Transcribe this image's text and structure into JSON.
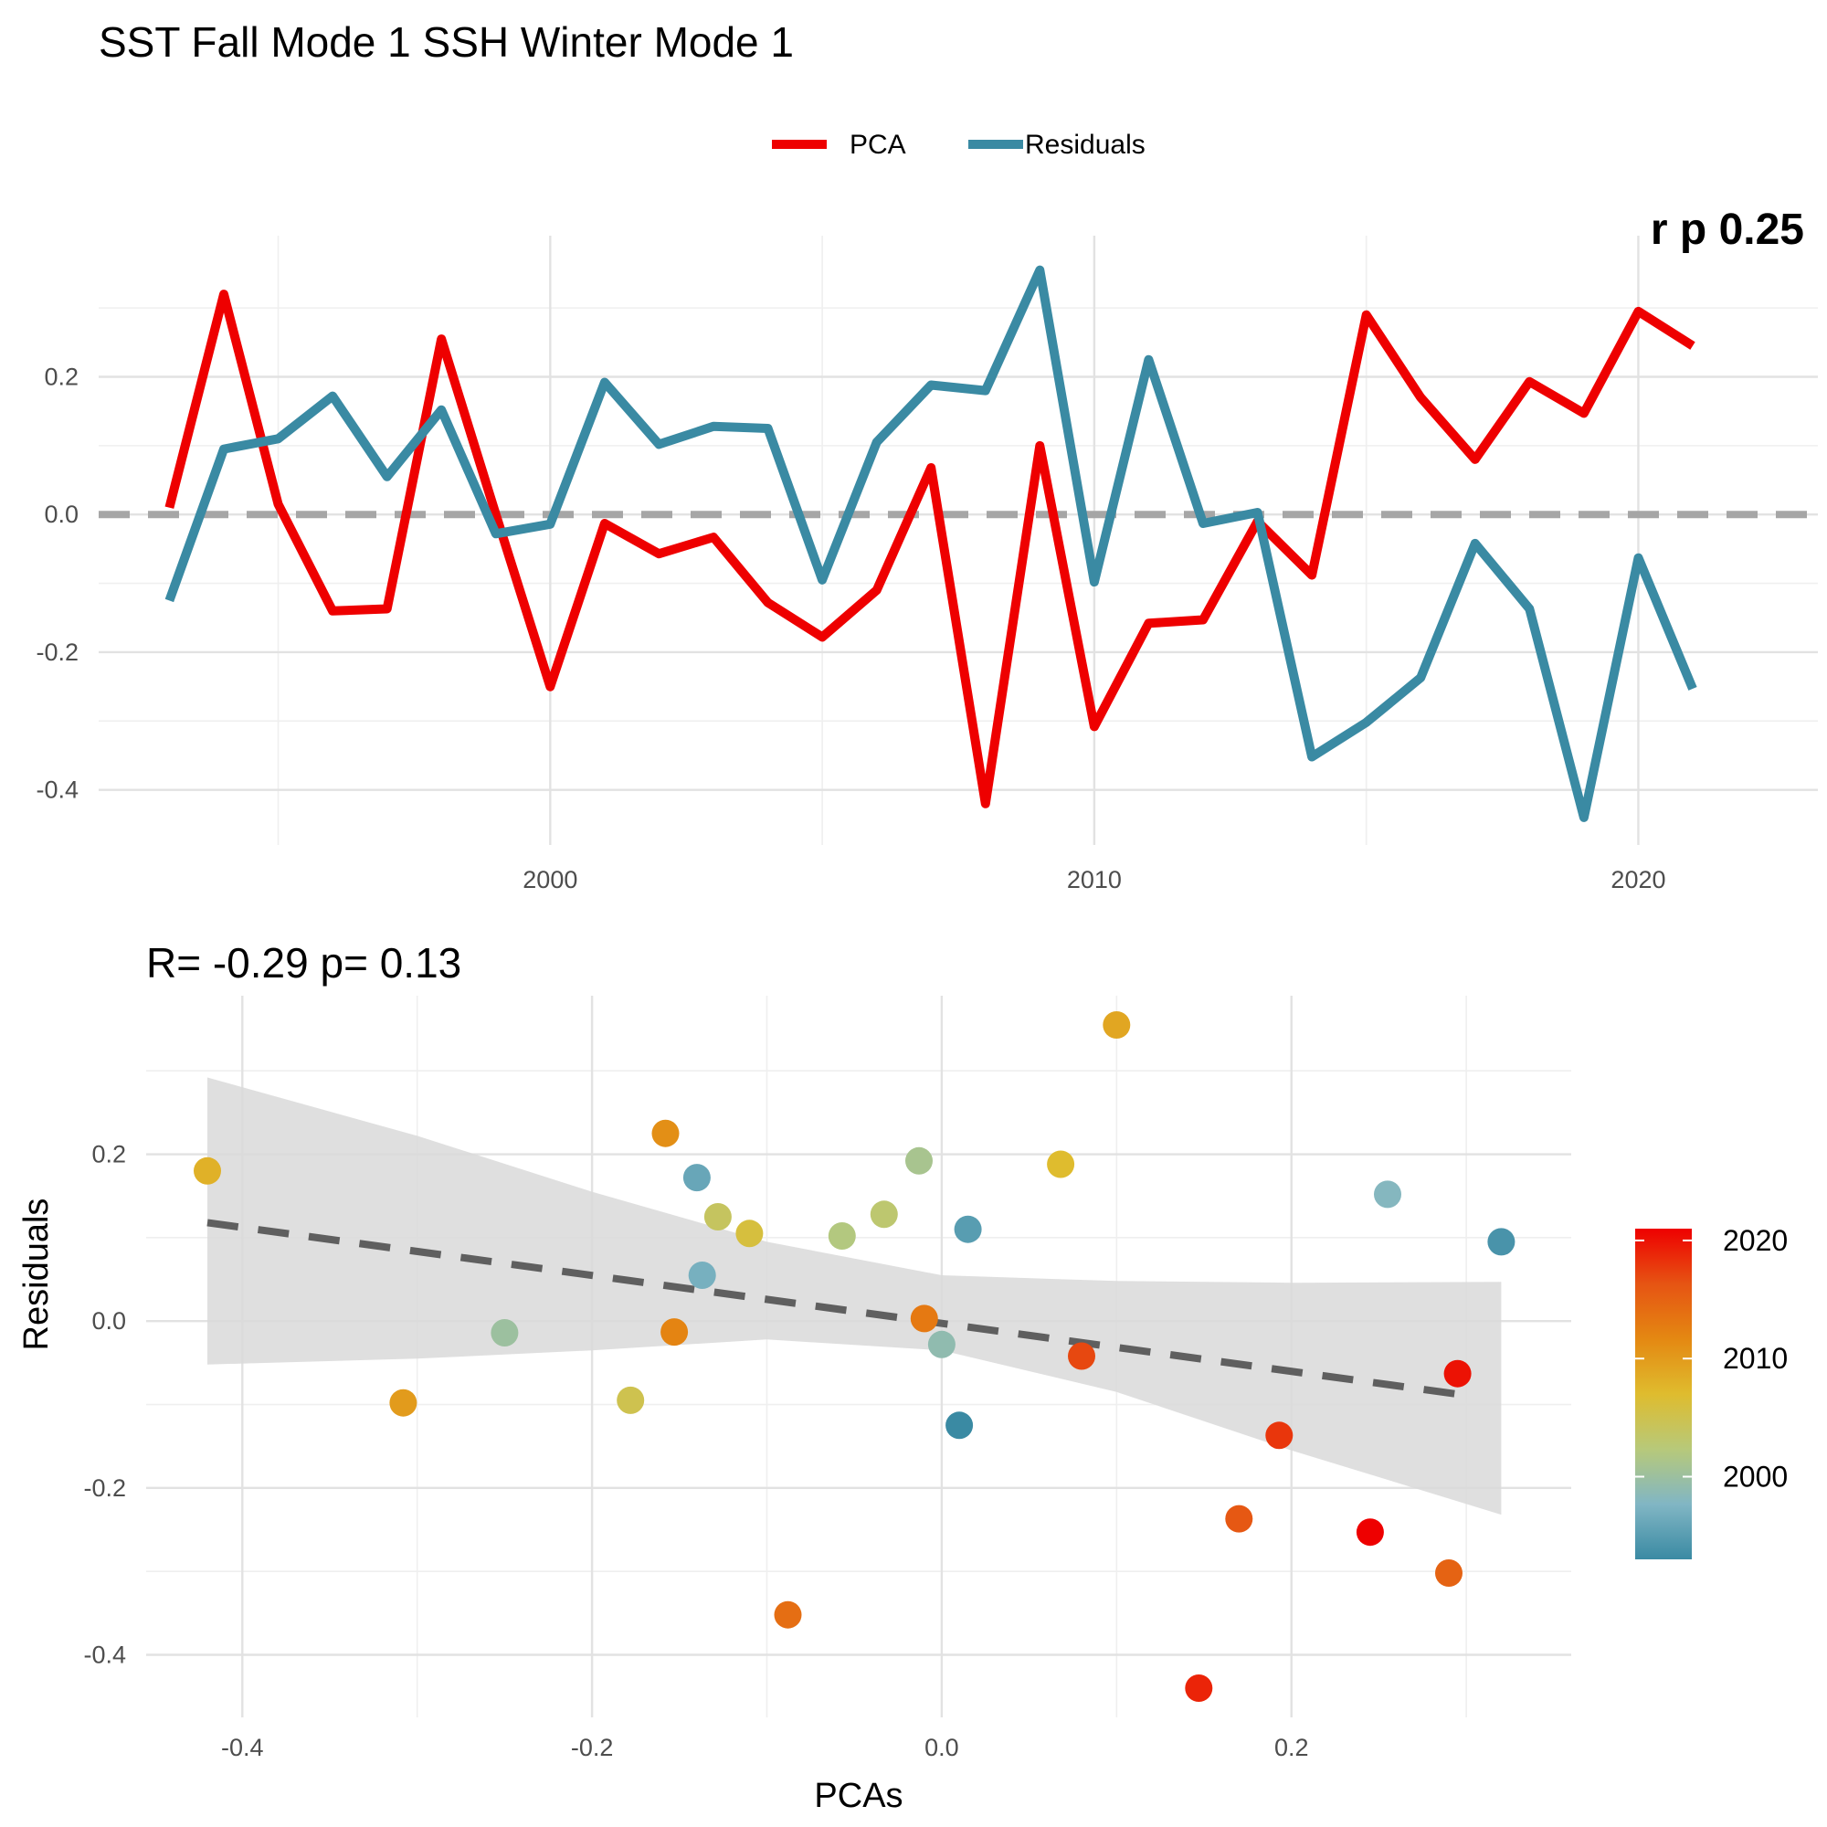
{
  "chart_data": [
    {
      "type": "line",
      "title": "SST Fall Mode 1 SSH Winter Mode 1",
      "corner_annotation": "r p 0.25",
      "legend": {
        "placement": "top-center",
        "entries": [
          "PCA",
          "Residuals"
        ]
      },
      "x": [
        1993,
        1994,
        1995,
        1996,
        1997,
        1998,
        1999,
        2000,
        2001,
        2002,
        2003,
        2004,
        2005,
        2006,
        2007,
        2008,
        2009,
        2010,
        2011,
        2012,
        2013,
        2014,
        2015,
        2016,
        2017,
        2018,
        2019,
        2020,
        2021
      ],
      "series": [
        {
          "name": "PCA",
          "color": "#ee0000",
          "values": [
            0.01,
            0.32,
            0.015,
            -0.14,
            -0.137,
            0.255,
            0.0,
            -0.25,
            -0.013,
            -0.057,
            -0.033,
            -0.128,
            -0.178,
            -0.11,
            0.068,
            -0.42,
            0.1,
            -0.308,
            -0.158,
            -0.153,
            -0.01,
            -0.088,
            0.29,
            0.17,
            0.08,
            0.193,
            0.147,
            0.295,
            0.245
          ]
        },
        {
          "name": "Residuals",
          "color": "#3a8aa3",
          "values": [
            -0.125,
            0.095,
            0.11,
            0.172,
            0.055,
            0.152,
            -0.028,
            -0.014,
            0.192,
            0.102,
            0.128,
            0.125,
            -0.095,
            0.105,
            0.188,
            0.18,
            0.355,
            -0.098,
            0.225,
            -0.013,
            0.003,
            -0.352,
            -0.302,
            -0.237,
            -0.042,
            -0.137,
            -0.44,
            -0.063,
            -0.253
          ]
        }
      ],
      "reference_line": {
        "y": 0,
        "style": "dashed",
        "color": "#a6a6a6"
      },
      "x_ticks": [
        2000,
        2010,
        2020
      ],
      "y_ticks": [
        -0.4,
        -0.2,
        0.0,
        0.2
      ],
      "y_tick_labels": [
        "-0.4",
        "-0.2",
        "0.0",
        "0.2"
      ],
      "xlim": [
        1991.7,
        2023.3
      ],
      "ylim": [
        -0.48,
        0.405
      ],
      "grid": true
    },
    {
      "type": "scatter",
      "title": "R= -0.29  p= 0.13",
      "xlabel": "PCAs",
      "ylabel": "Residuals",
      "x_ticks": [
        -0.4,
        -0.2,
        0.0,
        0.2
      ],
      "x_tick_labels": [
        "-0.4",
        "-0.2",
        "0.0",
        "0.2"
      ],
      "y_ticks": [
        -0.4,
        -0.2,
        0.0,
        0.2
      ],
      "y_tick_labels": [
        "-0.4",
        "-0.2",
        "0.0",
        "0.2"
      ],
      "xlim": [
        -0.455,
        0.36
      ],
      "ylim": [
        -0.475,
        0.39
      ],
      "grid": true,
      "points": [
        {
          "year": 1993,
          "x": 0.01,
          "y": -0.125
        },
        {
          "year": 1994,
          "x": 0.32,
          "y": 0.095
        },
        {
          "year": 1995,
          "x": 0.015,
          "y": 0.11
        },
        {
          "year": 1996,
          "x": -0.14,
          "y": 0.172
        },
        {
          "year": 1997,
          "x": -0.137,
          "y": 0.055
        },
        {
          "year": 1998,
          "x": 0.255,
          "y": 0.152
        },
        {
          "year": 1999,
          "x": 0.0,
          "y": -0.028
        },
        {
          "year": 2000,
          "x": -0.25,
          "y": -0.014
        },
        {
          "year": 2001,
          "x": -0.013,
          "y": 0.192
        },
        {
          "year": 2002,
          "x": -0.057,
          "y": 0.102
        },
        {
          "year": 2003,
          "x": -0.033,
          "y": 0.128
        },
        {
          "year": 2004,
          "x": -0.128,
          "y": 0.125
        },
        {
          "year": 2005,
          "x": -0.178,
          "y": -0.095
        },
        {
          "year": 2006,
          "x": -0.11,
          "y": 0.105
        },
        {
          "year": 2007,
          "x": 0.068,
          "y": 0.188
        },
        {
          "year": 2008,
          "x": -0.42,
          "y": 0.18
        },
        {
          "year": 2009,
          "x": 0.1,
          "y": 0.355
        },
        {
          "year": 2010,
          "x": -0.308,
          "y": -0.098
        },
        {
          "year": 2011,
          "x": -0.158,
          "y": 0.225
        },
        {
          "year": 2012,
          "x": -0.153,
          "y": -0.013
        },
        {
          "year": 2013,
          "x": -0.01,
          "y": 0.003
        },
        {
          "year": 2014,
          "x": -0.088,
          "y": -0.352
        },
        {
          "year": 2015,
          "x": 0.29,
          "y": -0.302
        },
        {
          "year": 2016,
          "x": 0.17,
          "y": -0.237
        },
        {
          "year": 2017,
          "x": 0.08,
          "y": -0.042
        },
        {
          "year": 2018,
          "x": 0.193,
          "y": -0.137
        },
        {
          "year": 2019,
          "x": 0.147,
          "y": -0.44
        },
        {
          "year": 2020,
          "x": 0.295,
          "y": -0.063
        },
        {
          "year": 2021,
          "x": 0.245,
          "y": -0.253
        }
      ],
      "fit_line": {
        "style": "dashed",
        "color": "#5f5f5f",
        "x": [
          -0.42,
          0.3
        ],
        "y": [
          0.118,
          -0.089
        ]
      },
      "confidence_band": {
        "color": "#d9d9d9",
        "x": [
          -0.42,
          -0.3,
          -0.2,
          -0.1,
          0.0,
          0.1,
          0.2,
          0.32
        ],
        "lower": [
          -0.052,
          -0.045,
          -0.035,
          -0.022,
          -0.035,
          -0.085,
          -0.155,
          -0.232
        ],
        "upper": [
          0.292,
          0.222,
          0.155,
          0.095,
          0.055,
          0.048,
          0.046,
          0.047
        ]
      },
      "colorbar": {
        "ticks": [
          2000,
          2010,
          2020
        ],
        "range": [
          1993,
          2021
        ],
        "stops": [
          "#3a8aa3",
          "#81b6c4",
          "#b7c97a",
          "#dfbc2e",
          "#e48812",
          "#e65413",
          "#ee0000"
        ]
      }
    }
  ]
}
